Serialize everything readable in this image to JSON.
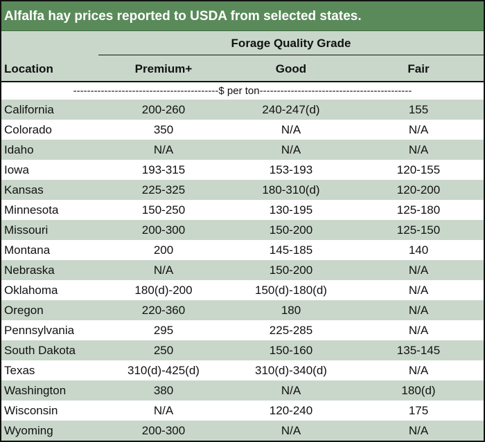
{
  "title": "Alfalfa hay prices reported to USDA from selected states.",
  "header": {
    "grade_title": "Forage Quality Grade",
    "location": "Location",
    "premium": "Premium+",
    "good": "Good",
    "fair": "Fair"
  },
  "unit_row": {
    "left_dashes": "------------------------------------------",
    "label": "$ per ton",
    "right_dashes": "--------------------------------------------"
  },
  "colors": {
    "title_bg": "#5a8a5a",
    "stripe": "#c9d7cb"
  },
  "rows": [
    {
      "location": "California",
      "premium": "200-260",
      "good": "240-247(d)",
      "fair": "155"
    },
    {
      "location": "Colorado",
      "premium": "350",
      "good": "N/A",
      "fair": "N/A"
    },
    {
      "location": "Idaho",
      "premium": "N/A",
      "good": "N/A",
      "fair": "N/A"
    },
    {
      "location": "Iowa",
      "premium": "193-315",
      "good": "153-193",
      "fair": "120-155"
    },
    {
      "location": "Kansas",
      "premium": "225-325",
      "good": "180-310(d)",
      "fair": "120-200"
    },
    {
      "location": "Minnesota",
      "premium": "150-250",
      "good": "130-195",
      "fair": "125-180"
    },
    {
      "location": "Missouri",
      "premium": "200-300",
      "good": "150-200",
      "fair": "125-150"
    },
    {
      "location": "Montana",
      "premium": "200",
      "good": "145-185",
      "fair": "140"
    },
    {
      "location": "Nebraska",
      "premium": "N/A",
      "good": "150-200",
      "fair": "N/A"
    },
    {
      "location": "Oklahoma",
      "premium": "180(d)-200",
      "good": "150(d)-180(d)",
      "fair": "N/A"
    },
    {
      "location": "Oregon",
      "premium": "220-360",
      "good": "180",
      "fair": "N/A"
    },
    {
      "location": "Pennsylvania",
      "premium": "295",
      "good": "225-285",
      "fair": "N/A"
    },
    {
      "location": "South Dakota",
      "premium": "250",
      "good": "150-160",
      "fair": "135-145"
    },
    {
      "location": "Texas",
      "premium": "310(d)-425(d)",
      "good": "310(d)-340(d)",
      "fair": "N/A"
    },
    {
      "location": "Washington",
      "premium": "380",
      "good": "N/A",
      "fair": "180(d)"
    },
    {
      "location": "Wisconsin",
      "premium": "N/A",
      "good": "120-240",
      "fair": "175"
    },
    {
      "location": "Wyoming",
      "premium": "200-300",
      "good": "N/A",
      "fair": "N/A"
    }
  ]
}
